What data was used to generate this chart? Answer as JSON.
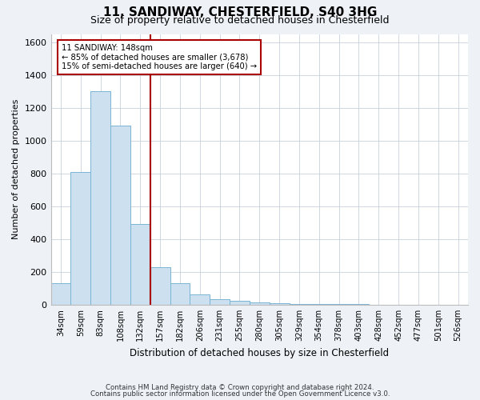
{
  "title": "11, SANDIWAY, CHESTERFIELD, S40 3HG",
  "subtitle": "Size of property relative to detached houses in Chesterfield",
  "xlabel": "Distribution of detached houses by size in Chesterfield",
  "ylabel": "Number of detached properties",
  "footnote1": "Contains HM Land Registry data © Crown copyright and database right 2024.",
  "footnote2": "Contains public sector information licensed under the Open Government Licence v3.0.",
  "categories": [
    "34sqm",
    "59sqm",
    "83sqm",
    "108sqm",
    "132sqm",
    "157sqm",
    "182sqm",
    "206sqm",
    "231sqm",
    "255sqm",
    "280sqm",
    "305sqm",
    "329sqm",
    "354sqm",
    "378sqm",
    "403sqm",
    "428sqm",
    "452sqm",
    "477sqm",
    "501sqm",
    "526sqm"
  ],
  "values": [
    130,
    810,
    1300,
    1090,
    490,
    230,
    130,
    65,
    35,
    25,
    15,
    10,
    5,
    5,
    5,
    5,
    0,
    0,
    0,
    0,
    0
  ],
  "bar_color": "#cce0f0",
  "bar_edge_color": "#7ab4d4",
  "vline_color": "#aa0000",
  "annotation_text": "11 SANDIWAY: 148sqm\n← 85% of detached houses are smaller (3,678)\n15% of semi-detached houses are larger (640) →",
  "annotation_box_color": "#ffffff",
  "annotation_box_edge": "#aa0000",
  "ylim": [
    0,
    1650
  ],
  "yticks": [
    0,
    200,
    400,
    600,
    800,
    1000,
    1200,
    1400,
    1600
  ],
  "background_color": "#eef2f7",
  "plot_background": "#ffffff",
  "grid_color": "#c8d0dc"
}
